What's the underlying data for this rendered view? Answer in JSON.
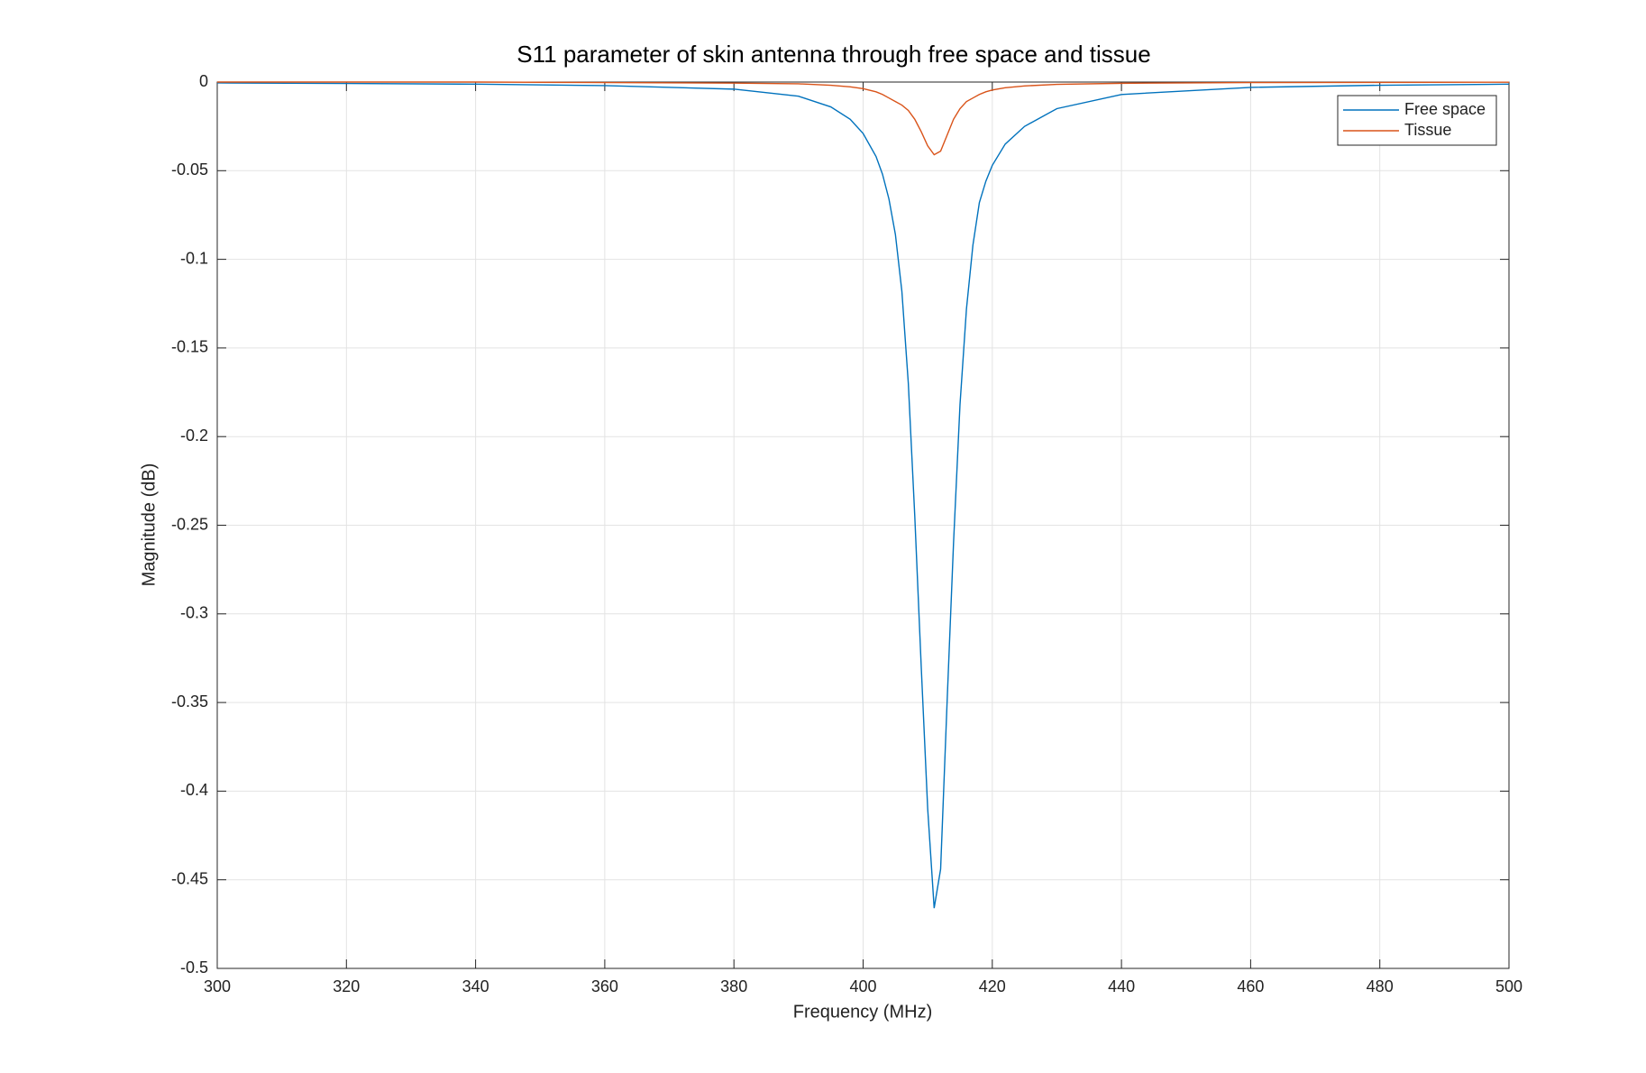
{
  "chart_data": {
    "type": "line",
    "title": "S11 parameter of skin antenna through free space and tissue",
    "xlabel": "Frequency (MHz)",
    "ylabel": "Magnitude (dB)",
    "x": [
      300,
      320,
      340,
      360,
      380,
      390,
      395,
      398,
      400,
      402,
      403,
      404,
      405,
      406,
      407,
      408,
      409,
      410,
      411,
      412,
      413,
      414,
      415,
      416,
      417,
      418,
      419,
      420,
      422,
      425,
      430,
      440,
      460,
      480,
      500
    ],
    "series": [
      {
        "name": "Free space",
        "color": "#0072BD",
        "values": [
          -0.0005,
          -0.0008,
          -0.0012,
          -0.002,
          -0.004,
          -0.008,
          -0.014,
          -0.021,
          -0.029,
          -0.042,
          -0.052,
          -0.066,
          -0.086,
          -0.118,
          -0.17,
          -0.245,
          -0.33,
          -0.41,
          -0.466,
          -0.444,
          -0.35,
          -0.26,
          -0.182,
          -0.128,
          -0.092,
          -0.068,
          -0.056,
          -0.047,
          -0.035,
          -0.025,
          -0.015,
          -0.007,
          -0.003,
          -0.0018,
          -0.0012
        ]
      },
      {
        "name": "Tissue",
        "color": "#D95319",
        "values": [
          0,
          0,
          0,
          -0.0003,
          -0.0006,
          -0.001,
          -0.0018,
          -0.0027,
          -0.0037,
          -0.0055,
          -0.007,
          -0.009,
          -0.011,
          -0.013,
          -0.016,
          -0.021,
          -0.028,
          -0.036,
          -0.041,
          -0.039,
          -0.03,
          -0.021,
          -0.015,
          -0.011,
          -0.009,
          -0.007,
          -0.0055,
          -0.0045,
          -0.0032,
          -0.0022,
          -0.0013,
          -0.0007,
          -0.0003,
          -0.0002,
          -0.0001
        ]
      }
    ],
    "xlim": [
      300,
      500
    ],
    "xticks": [
      300,
      320,
      340,
      360,
      380,
      400,
      420,
      440,
      460,
      480,
      500
    ],
    "ylim": [
      -0.5,
      0
    ],
    "yticks": [
      -0.5,
      -0.45,
      -0.4,
      -0.35,
      -0.3,
      -0.25,
      -0.2,
      -0.15,
      -0.1,
      -0.05,
      0
    ],
    "grid": true,
    "legend": "northeast"
  }
}
